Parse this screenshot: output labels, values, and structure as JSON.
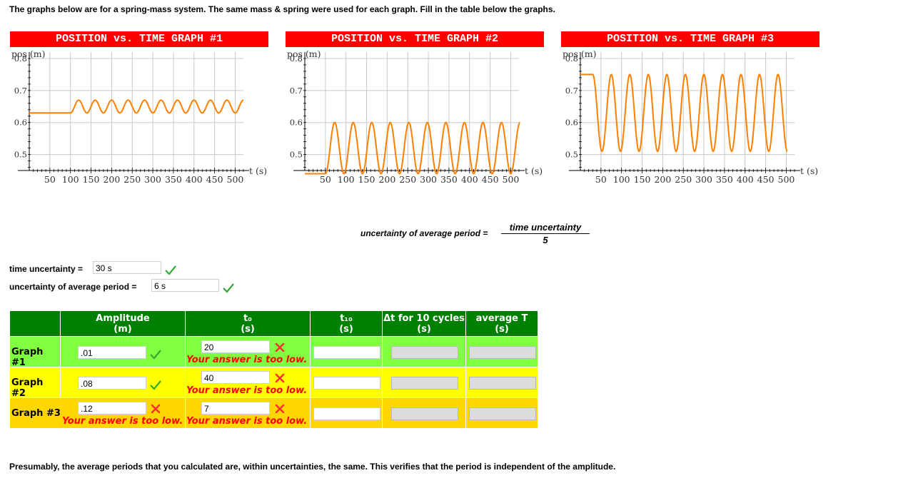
{
  "intro_text": "The graphs below are for a spring-mass system. The same mass & spring were used for each graph. Fill in the table below the graphs.",
  "graphs": [
    {
      "title": "POSITION vs. TIME GRAPH #1",
      "ylabel": "pos (m)",
      "xlabel": "t (s)",
      "y_ticks": [
        "0.8",
        "0.7",
        "0.6",
        "0.5"
      ],
      "x_ticks": [
        "50",
        "100",
        "150",
        "200",
        "250",
        "300",
        "350",
        "400",
        "450",
        "500"
      ]
    },
    {
      "title": "POSITION vs. TIME GRAPH #2",
      "ylabel": "pos (m)",
      "xlabel": "t (s)",
      "y_ticks": [
        "0.8",
        "0.7",
        "0.6",
        "0.5"
      ],
      "x_ticks": [
        "50",
        "100",
        "150",
        "200",
        "250",
        "300",
        "350",
        "400",
        "450",
        "500"
      ]
    },
    {
      "title": "POSITION vs. TIME GRAPH #3",
      "ylabel": "pos (m)",
      "xlabel": "t (s)",
      "y_ticks": [
        "0.8",
        "0.7",
        "0.6",
        "0.5"
      ],
      "x_ticks": [
        "50",
        "100",
        "150",
        "200",
        "250",
        "300",
        "350",
        "400",
        "450",
        "500"
      ]
    }
  ],
  "chart_data": [
    {
      "type": "line",
      "title": "POSITION vs. TIME GRAPH #1",
      "xlabel": "t (s)",
      "ylabel": "pos (m)",
      "xlim": [
        0,
        520
      ],
      "ylim": [
        0.45,
        0.82
      ],
      "series": [
        {
          "rest_position": 0.63,
          "start_time": 100,
          "amplitude": 0.02,
          "period": 40,
          "cycles": 10.5,
          "color": "#ff8000"
        }
      ]
    },
    {
      "type": "line",
      "title": "POSITION vs. TIME GRAPH #2",
      "xlabel": "t (s)",
      "ylabel": "pos (m)",
      "xlim": [
        0,
        520
      ],
      "ylim": [
        0.45,
        0.82
      ],
      "series": [
        {
          "rest_position": 0.44,
          "start_time": 50,
          "amplitude": 0.08,
          "period": 45,
          "cycles": 10.5,
          "color": "#ff8000"
        }
      ]
    },
    {
      "type": "line",
      "title": "POSITION vs. TIME GRAPH #3",
      "xlabel": "t (s)",
      "ylabel": "pos (m)",
      "xlim": [
        0,
        520
      ],
      "ylim": [
        0.45,
        0.82
      ],
      "series": [
        {
          "rest_position": 0.75,
          "start_time": 30,
          "amplitude": 0.12,
          "period": 45,
          "cycles": 10.5,
          "color": "#ff8000"
        }
      ]
    }
  ],
  "formula": {
    "lhs": "uncertainty of average period =",
    "numerator": "time uncertainty",
    "denominator": "5"
  },
  "uncertainty": {
    "time_label": "time uncertainty =",
    "time_value": "30 s",
    "period_label": "uncertainty of average period =",
    "period_value": "6 s"
  },
  "table": {
    "headers": {
      "amplitude": "Amplitude",
      "amplitude_unit": "(m)",
      "t0": "t₀",
      "t0_unit": "(s)",
      "t10": "t₁₀",
      "t10_unit": "(s)",
      "dt": "Δt for 10 cycles",
      "dt_unit": "(s)",
      "avg": "average T",
      "avg_unit": "(s)"
    },
    "rows": [
      {
        "label": "Graph #1",
        "amplitude": ".01",
        "t0": "20",
        "t10": "",
        "dt": "",
        "avg": ""
      },
      {
        "label": "Graph #2",
        "amplitude": ".08",
        "t0": "40",
        "t10": "",
        "dt": "",
        "avg": ""
      },
      {
        "label": "Graph #3",
        "amplitude": ".12",
        "t0": "7",
        "t10": "",
        "dt": "",
        "avg": ""
      }
    ],
    "feedback_too_low": "Your answer is too low."
  },
  "outro_text": "Presumably, the average periods that you calculated are, within uncertainties, the same. This verifies that the period is independent of the amplitude.",
  "colors": {
    "title_bg": "#ff0000",
    "curve": "#ff8000",
    "header_bg": "#008000",
    "row1": "#80ff40",
    "row2": "#ffff00",
    "row3": "#ffd700",
    "error": "#ff0000",
    "check": "#33aa33"
  }
}
